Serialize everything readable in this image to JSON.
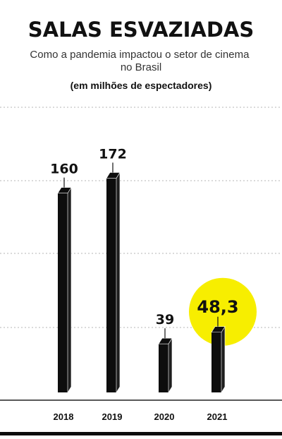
{
  "chart_data": {
    "type": "bar",
    "title": "SALAS ESVAZIADAS",
    "subtitle": "Como a pandemia impactou o setor de cinema no Brasil",
    "unit_note": "(em milhões de espectadores)",
    "categories": [
      "2018",
      "2019",
      "2020",
      "2021"
    ],
    "values": [
      160,
      172,
      39,
      48.3
    ],
    "value_labels": [
      "160",
      "172",
      "39",
      "48,3"
    ],
    "highlight_index": 3,
    "grid": true,
    "ylim": [
      0,
      200
    ]
  },
  "colors": {
    "bar_front": "#0d0d0d",
    "bar_side": "#1e1e1e",
    "highlight": "#f7ee00",
    "text": "#111111",
    "grid": "#b5b5b5"
  }
}
